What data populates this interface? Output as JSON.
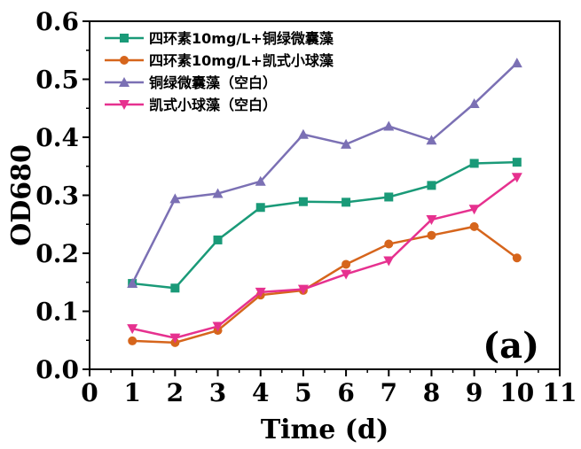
{
  "chart_data": {
    "type": "line",
    "xlabel": "Time (d)",
    "ylabel": "OD680",
    "xlim": [
      0,
      11
    ],
    "ylim": [
      0.0,
      0.6
    ],
    "x_ticks": [
      "0",
      "1",
      "2",
      "3",
      "4",
      "5",
      "6",
      "7",
      "8",
      "9",
      "10",
      "11"
    ],
    "y_ticks": [
      "0.0",
      "0.1",
      "0.2",
      "0.3",
      "0.4",
      "0.5",
      "0.6"
    ],
    "x": [
      1,
      2,
      3,
      4,
      5,
      6,
      7,
      8,
      9,
      10
    ],
    "annotation": "(a)",
    "legend_position": "top-left",
    "grid": false,
    "series": [
      {
        "name": "四环素10mg/L+铜绿微囊藻",
        "color": "#1a9a78",
        "marker": "square",
        "values": [
          0.148,
          0.14,
          0.223,
          0.279,
          0.289,
          0.288,
          0.297,
          0.317,
          0.355,
          0.357
        ]
      },
      {
        "name": "四环素10mg/L+凯式小球藻",
        "color": "#d6651c",
        "marker": "circle",
        "values": [
          0.049,
          0.046,
          0.067,
          0.128,
          0.136,
          0.181,
          0.216,
          0.231,
          0.246,
          0.192
        ]
      },
      {
        "name": "铜绿微囊藻（空白）",
        "color": "#7b70b4",
        "marker": "triangle-up",
        "values": [
          0.148,
          0.294,
          0.303,
          0.324,
          0.405,
          0.388,
          0.419,
          0.395,
          0.458,
          0.528
        ]
      },
      {
        "name": "凯式小球藻（空白）",
        "color": "#e6318f",
        "marker": "triangle-down",
        "values": [
          0.07,
          0.054,
          0.074,
          0.133,
          0.138,
          0.164,
          0.187,
          0.258,
          0.276,
          0.331
        ]
      }
    ]
  }
}
